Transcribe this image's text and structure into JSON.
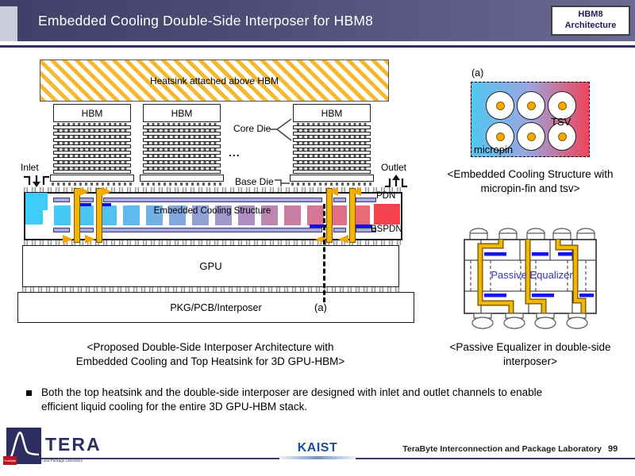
{
  "title_bar": {
    "title": "Embedded Cooling Double-Side Interposer for HBM8",
    "badge_line1": "HBM8",
    "badge_line2": "Architecture"
  },
  "main": {
    "heatsink": "Heatsink attached above HBM",
    "hbm": "HBM",
    "core_die": "Core Die",
    "ellipsis": "...",
    "base_die": "Base Die",
    "inlet": "Inlet",
    "outlet": "Outlet",
    "pdn": "PDN",
    "bspdn": "BSPDN",
    "cooling": "Embedded Cooling Structure",
    "gpu": "GPU",
    "pkg": "PKG/PCB/Interposer",
    "section_a": "(a)",
    "caption_line1": "<Proposed Double-Side Interposer Architecture with",
    "caption_line2": "Embedded Cooling and Top Heatsink for 3D GPU-HBM>",
    "hbm_die_rows": 8,
    "cooling_block_colors": [
      "#44c8f4",
      "#4ac4f2",
      "#52c0f0",
      "#60baee",
      "#72b1e6",
      "#82a9dd",
      "#92a1d4",
      "#a097cb",
      "#ae8ec0",
      "#bc85b2",
      "#c97da3",
      "#d57694",
      "#e07085",
      "#ea6a75"
    ],
    "colors": {
      "inlet_plenum": "#3ecdf6",
      "outlet_plenum": "#f4424f",
      "coolant_channel_gold": "#f6b400",
      "pdn_bar_lavender": "#a8a8e4",
      "equalizer_blue": "#1010e8"
    }
  },
  "micropin": {
    "label_a": "(a)",
    "tsv": "TSV",
    "micropin": "micropin",
    "caption_line1": "<Embedded Cooling Structure with",
    "caption_line2": "micropin-fin and tsv>"
  },
  "equalizer": {
    "label": "Passive Equalizer",
    "caption_line1": "<Passive Equalizer in double-side",
    "caption_line2": "interposer>"
  },
  "bullet": {
    "text": "Both the top heatsink and the double-side interposer are designed with inlet and outlet channels to enable efficient liquid cooling for the entire 3D GPU-HBM stack."
  },
  "footer": {
    "tera": "TERA",
    "tera_byte": "TeraByte",
    "tera_sub": "Interconnection and Package Laboratory",
    "kaist": "KAIST",
    "lab": "TeraByte Interconnection and Package Laboratory",
    "page": "99"
  }
}
